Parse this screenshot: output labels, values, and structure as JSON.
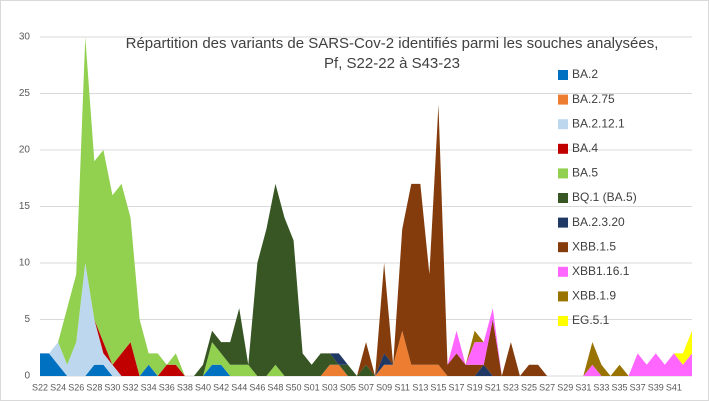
{
  "chart_data": {
    "type": "stacked_area",
    "title_lines": [
      "Répartition des variants de SARS-Cov-2 identifiés parmi les souches analysées,",
      "Pf, S22-22 à S43-23"
    ],
    "categories": [
      "S22",
      null,
      "S24",
      null,
      "S26",
      null,
      "S28",
      null,
      "S30",
      null,
      "S32",
      null,
      "S34",
      null,
      "S36",
      null,
      "S38",
      null,
      "S40",
      null,
      "S42",
      null,
      "S44",
      null,
      "S46",
      null,
      "S48",
      null,
      "S50",
      null,
      "S01",
      null,
      "S03",
      null,
      "S05",
      null,
      "S07",
      null,
      "S09",
      null,
      "S11",
      null,
      "S13",
      null,
      "S15",
      null,
      "S17",
      null,
      "S19",
      null,
      "S21",
      null,
      "S23",
      null,
      "S25",
      null,
      "S27",
      null,
      "S29",
      null,
      "S31",
      null,
      "S33",
      null,
      "S35",
      null,
      "S37",
      null,
      "S39",
      null,
      "S41",
      null,
      null
    ],
    "ylim": [
      0,
      30
    ],
    "yticks": [
      0,
      5,
      10,
      15,
      20,
      25,
      30
    ],
    "grid": true,
    "series": [
      {
        "name": "BA.2",
        "color": "#0070c0",
        "values": [
          2,
          2,
          1,
          0,
          0,
          0,
          1,
          1,
          0,
          0,
          0,
          0,
          1,
          0,
          0,
          0,
          0,
          0,
          0,
          1,
          1,
          0,
          0,
          0,
          0,
          0,
          0,
          0,
          0,
          0,
          0,
          0,
          0,
          0,
          0,
          0,
          0,
          0,
          0,
          0,
          0,
          0,
          0,
          0,
          0,
          0,
          0,
          0,
          0,
          0,
          0,
          0,
          0,
          0,
          0,
          0,
          0,
          0,
          0,
          0,
          0,
          0,
          0,
          0,
          0,
          0,
          0,
          0,
          0,
          0,
          0,
          0,
          0
        ]
      },
      {
        "name": "BA.2.75",
        "color": "#ed7d31",
        "values": [
          0,
          0,
          0,
          0,
          0,
          0,
          0,
          0,
          0,
          0,
          0,
          0,
          0,
          0,
          0,
          0,
          0,
          0,
          0,
          0,
          0,
          0,
          0,
          0,
          0,
          0,
          0,
          0,
          0,
          0,
          0,
          0,
          1,
          1,
          0,
          0,
          0,
          0,
          1,
          1,
          4,
          1,
          1,
          1,
          1,
          0,
          0,
          0,
          0,
          0,
          0,
          0,
          0,
          0,
          0,
          0,
          0,
          0,
          0,
          0,
          0,
          0,
          0,
          0,
          0,
          0,
          0,
          0,
          0,
          0,
          0,
          0,
          0
        ]
      },
      {
        "name": "BA.2.12.1",
        "color": "#bdd7ee",
        "values": [
          0,
          0,
          2,
          1,
          3,
          10,
          4,
          1,
          1,
          0,
          0,
          0,
          0,
          0,
          0,
          0,
          0,
          0,
          0,
          0,
          0,
          0,
          0,
          0,
          0,
          0,
          0,
          0,
          0,
          0,
          0,
          0,
          0,
          0,
          0,
          0,
          0,
          0,
          0,
          0,
          0,
          0,
          0,
          0,
          0,
          0,
          0,
          0,
          0,
          0,
          0,
          0,
          0,
          0,
          0,
          0,
          0,
          0,
          0,
          0,
          0,
          0,
          0,
          0,
          0,
          0,
          0,
          0,
          0,
          0,
          0,
          0,
          0
        ]
      },
      {
        "name": "BA.4",
        "color": "#c00000",
        "values": [
          0,
          0,
          0,
          0,
          0,
          0,
          0,
          1,
          0,
          2,
          3,
          0,
          0,
          0,
          1,
          1,
          0,
          0,
          0,
          0,
          0,
          0,
          0,
          0,
          0,
          0,
          0,
          0,
          0,
          0,
          0,
          0,
          0,
          0,
          0,
          0,
          0,
          0,
          0,
          0,
          0,
          0,
          0,
          0,
          0,
          0,
          0,
          0,
          0,
          0,
          0,
          0,
          0,
          0,
          0,
          0,
          0,
          0,
          0,
          0,
          0,
          0,
          0,
          0,
          0,
          0,
          0,
          0,
          0,
          0,
          0,
          0,
          0
        ]
      },
      {
        "name": "BA.5",
        "color": "#92d050",
        "values": [
          0,
          0,
          0,
          5,
          6,
          20,
          14,
          17,
          15,
          15,
          11,
          5,
          1,
          2,
          0,
          1,
          0,
          0,
          0,
          2,
          1,
          1,
          1,
          1,
          0,
          0,
          1,
          0,
          0,
          0,
          0,
          0,
          0,
          0,
          0,
          0,
          0,
          0,
          0,
          0,
          0,
          0,
          0,
          0,
          0,
          0,
          0,
          0,
          0,
          0,
          0,
          0,
          0,
          0,
          0,
          0,
          0,
          0,
          0,
          0,
          0,
          0,
          0,
          0,
          0,
          0,
          0,
          0,
          0,
          0,
          0,
          0,
          0
        ]
      },
      {
        "name": "BQ.1 (BA.5)",
        "color": "#375623",
        "values": [
          0,
          0,
          0,
          0,
          0,
          0,
          0,
          0,
          0,
          0,
          0,
          0,
          0,
          0,
          0,
          0,
          0,
          0,
          1,
          1,
          1,
          2,
          5,
          0,
          10,
          13,
          16,
          14,
          12,
          2,
          1,
          2,
          1,
          0,
          1,
          0,
          1,
          0,
          0,
          0,
          0,
          0,
          0,
          0,
          0,
          0,
          0,
          0,
          0,
          0,
          0,
          0,
          0,
          0,
          0,
          0,
          0,
          0,
          0,
          0,
          0,
          0,
          0,
          0,
          0,
          0,
          0,
          0,
          0,
          0,
          0,
          0,
          0
        ]
      },
      {
        "name": "BA.2.3.20",
        "color": "#203864",
        "values": [
          0,
          0,
          0,
          0,
          0,
          0,
          0,
          0,
          0,
          0,
          0,
          0,
          0,
          0,
          0,
          0,
          0,
          0,
          0,
          0,
          0,
          0,
          0,
          0,
          0,
          0,
          0,
          0,
          0,
          0,
          0,
          0,
          0,
          1,
          0,
          0,
          0,
          0,
          1,
          0,
          0,
          0,
          0,
          0,
          0,
          0,
          0,
          0,
          0,
          1,
          0,
          0,
          0,
          0,
          0,
          0,
          0,
          0,
          0,
          0,
          0,
          0,
          0,
          0,
          0,
          0,
          0,
          0,
          0,
          0,
          0,
          0,
          0
        ]
      },
      {
        "name": "XBB.1.5",
        "color": "#843c0c",
        "values": [
          0,
          0,
          0,
          0,
          0,
          0,
          0,
          0,
          0,
          0,
          0,
          0,
          0,
          0,
          0,
          0,
          0,
          0,
          0,
          0,
          0,
          0,
          0,
          0,
          0,
          0,
          0,
          0,
          0,
          0,
          0,
          0,
          0,
          0,
          0,
          0,
          2,
          0,
          8,
          0,
          9,
          16,
          16,
          8,
          23,
          1,
          2,
          1,
          1,
          0,
          5,
          0,
          3,
          0,
          1,
          1,
          0,
          0,
          0,
          0,
          0,
          0,
          0,
          0,
          0,
          0,
          0,
          0,
          0,
          0,
          0,
          0,
          0
        ]
      },
      {
        "name": "XBB1.16.1",
        "color": "#ff66ff",
        "values": [
          0,
          0,
          0,
          0,
          0,
          0,
          0,
          0,
          0,
          0,
          0,
          0,
          0,
          0,
          0,
          0,
          0,
          0,
          0,
          0,
          0,
          0,
          0,
          0,
          0,
          0,
          0,
          0,
          0,
          0,
          0,
          0,
          0,
          0,
          0,
          0,
          0,
          0,
          0,
          0,
          0,
          0,
          0,
          0,
          0,
          0,
          2,
          0,
          2,
          2,
          1,
          0,
          0,
          0,
          0,
          0,
          0,
          0,
          0,
          0,
          0,
          1,
          0,
          0,
          0,
          0,
          2,
          1,
          2,
          1,
          2,
          1,
          2
        ]
      },
      {
        "name": "XBB.1.9",
        "color": "#997300",
        "values": [
          0,
          0,
          0,
          0,
          0,
          0,
          0,
          0,
          0,
          0,
          0,
          0,
          0,
          0,
          0,
          0,
          0,
          0,
          0,
          0,
          0,
          0,
          0,
          0,
          0,
          0,
          0,
          0,
          0,
          0,
          0,
          0,
          0,
          0,
          0,
          0,
          0,
          0,
          0,
          0,
          0,
          0,
          0,
          0,
          0,
          0,
          0,
          0,
          1,
          0,
          0,
          0,
          0,
          0,
          0,
          0,
          0,
          0,
          0,
          0,
          0,
          2,
          1,
          0,
          1,
          0,
          0,
          0,
          0,
          0,
          0,
          0,
          0
        ]
      },
      {
        "name": "EG.5.1",
        "color": "#ffff00",
        "values": [
          0,
          0,
          0,
          0,
          0,
          0,
          0,
          0,
          0,
          0,
          0,
          0,
          0,
          0,
          0,
          0,
          0,
          0,
          0,
          0,
          0,
          0,
          0,
          0,
          0,
          0,
          0,
          0,
          0,
          0,
          0,
          0,
          0,
          0,
          0,
          0,
          0,
          0,
          0,
          0,
          0,
          0,
          0,
          0,
          0,
          0,
          0,
          0,
          0,
          0,
          0,
          0,
          0,
          0,
          0,
          0,
          0,
          0,
          0,
          0,
          0,
          0,
          0,
          0,
          0,
          0,
          0,
          0,
          0,
          0,
          0,
          1,
          2
        ]
      }
    ]
  }
}
